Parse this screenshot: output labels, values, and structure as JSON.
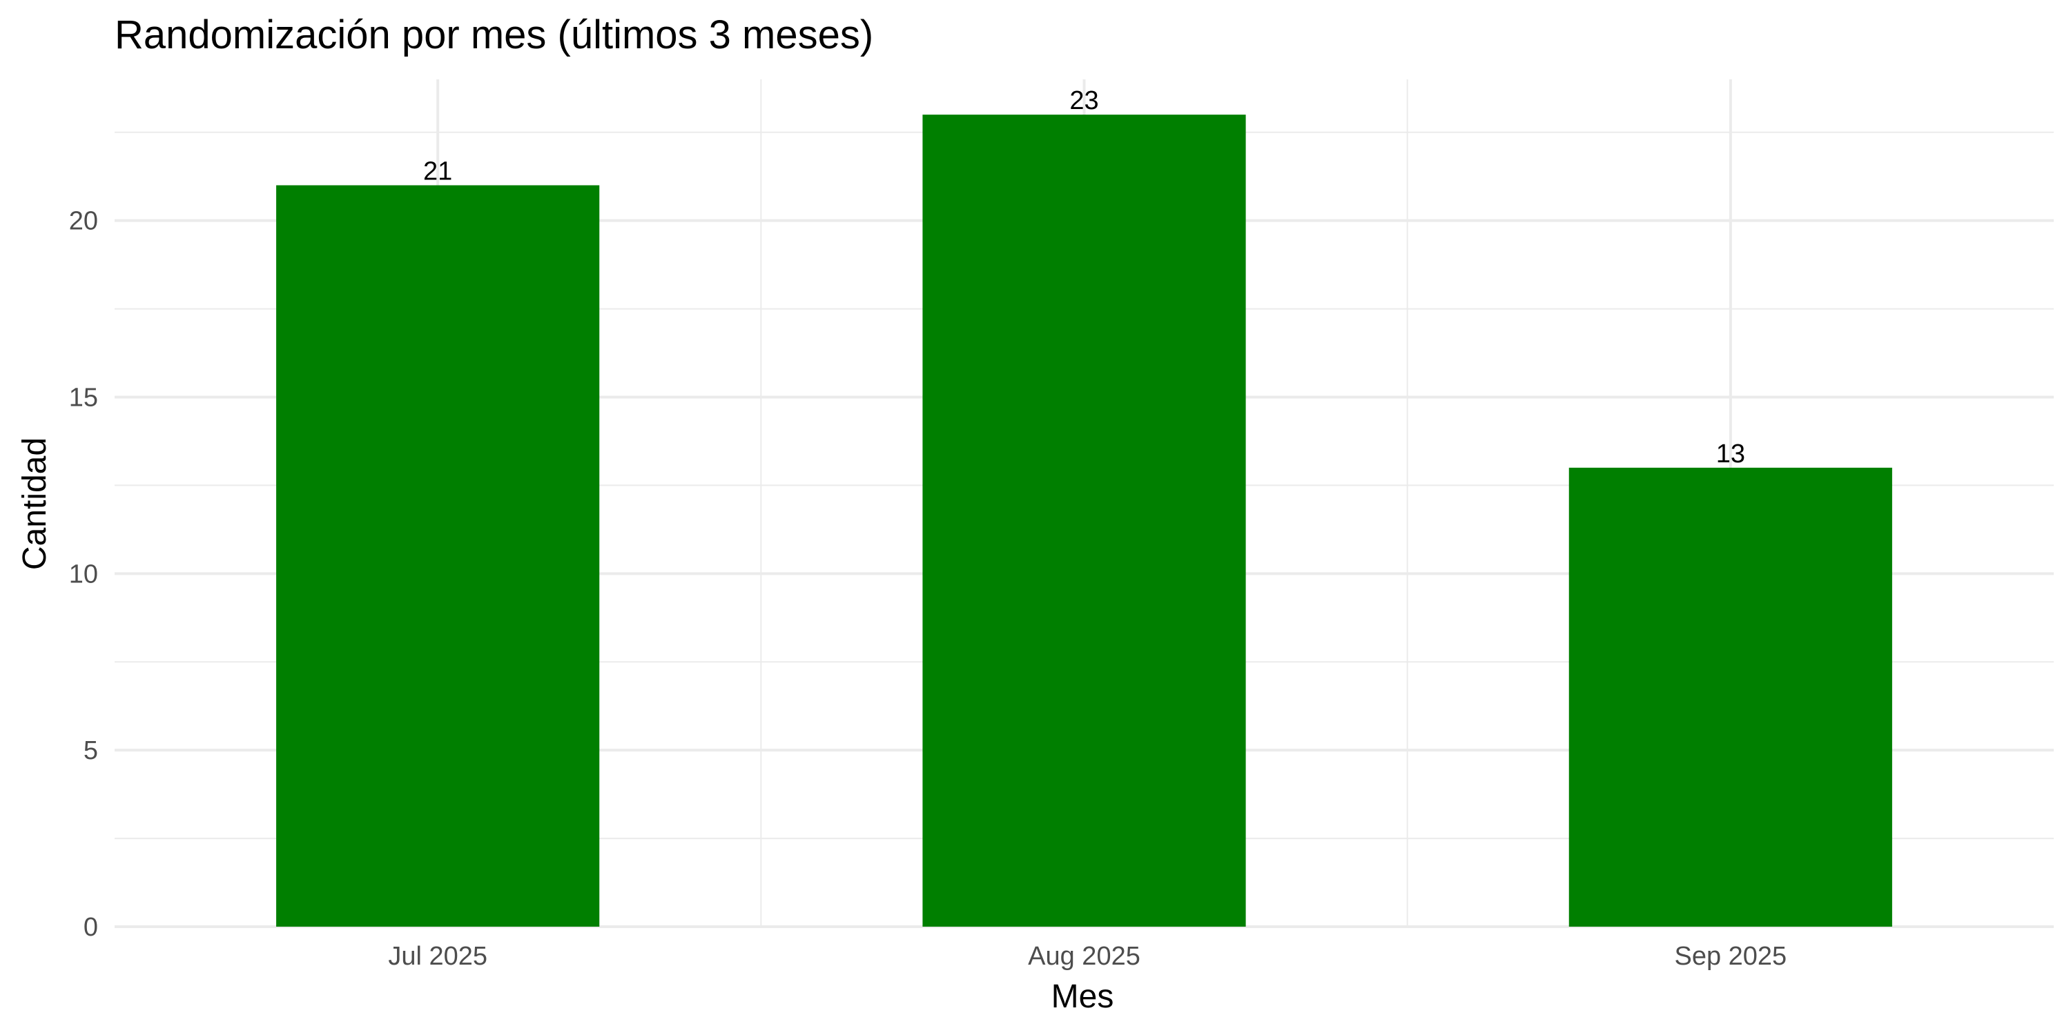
{
  "chart_data": {
    "type": "bar",
    "title": "Randomización por mes (últimos 3 meses)",
    "xlabel": "Mes",
    "ylabel": "Cantidad",
    "categories": [
      "Jul 2025",
      "Aug 2025",
      "Sep 2025"
    ],
    "values": [
      21,
      23,
      13
    ],
    "data_labels": [
      "21",
      "23",
      "13"
    ],
    "ylim": [
      0,
      24
    ],
    "y_ticks": [
      0,
      5,
      10,
      15,
      20
    ],
    "y_tick_labels": [
      "0",
      "5",
      "10",
      "15",
      "20"
    ],
    "grid": true,
    "legend": "none",
    "bar_color": "#007f00"
  }
}
